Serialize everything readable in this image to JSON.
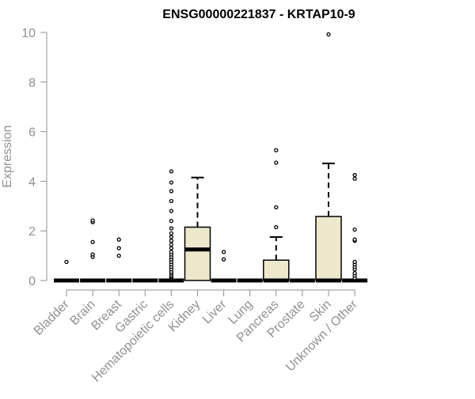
{
  "chart_data": {
    "type": "boxplot",
    "title": "ENSG00000221837 - KRTAP10-9",
    "xlabel": "",
    "ylabel": "Expression",
    "ylim": [
      0,
      10
    ],
    "yticks": [
      0,
      2,
      4,
      6,
      8,
      10
    ],
    "grid": false,
    "legend": "none",
    "colors": {
      "box_fill": "#ede8cc",
      "box_stroke": "#000000",
      "axis": "#909090",
      "label": "#909090"
    },
    "categories": [
      "Bladder",
      "Brain",
      "Breast",
      "Gastric",
      "Hematopoietic cells",
      "Kidney",
      "Liver",
      "Lung",
      "Pancreas",
      "Prostate",
      "Skin",
      "Unknown / Other"
    ],
    "boxes": [
      {
        "category": "Bladder",
        "q1": 0,
        "median": 0,
        "q3": 0,
        "whisker_low": 0,
        "whisker_high": 0,
        "outliers": [
          0.75
        ]
      },
      {
        "category": "Brain",
        "q1": 0,
        "median": 0,
        "q3": 0,
        "whisker_low": 0,
        "whisker_high": 0,
        "outliers": [
          0.95,
          1.05,
          1.55,
          2.35,
          2.42
        ]
      },
      {
        "category": "Breast",
        "q1": 0,
        "median": 0,
        "q3": 0,
        "whisker_low": 0,
        "whisker_high": 0,
        "outliers": [
          1.0,
          1.3,
          1.65
        ]
      },
      {
        "category": "Gastric",
        "q1": 0,
        "median": 0,
        "q3": 0,
        "whisker_low": 0,
        "whisker_high": 0,
        "outliers": []
      },
      {
        "category": "Hematopoietic cells",
        "q1": 0,
        "median": 0,
        "q3": 0,
        "whisker_low": 0,
        "whisker_high": 0,
        "outliers": [
          0.1,
          0.15,
          0.2,
          0.28,
          0.35,
          0.45,
          0.55,
          0.65,
          0.75,
          0.85,
          0.95,
          1.05,
          1.15,
          1.3,
          1.45,
          1.6,
          1.75,
          1.9,
          2.1,
          2.4,
          2.8,
          3.2,
          3.6,
          3.95,
          4.4
        ]
      },
      {
        "category": "Kidney",
        "q1": 0,
        "median": 1.25,
        "q3": 2.15,
        "whisker_low": 0,
        "whisker_high": 4.15,
        "outliers": []
      },
      {
        "category": "Liver",
        "q1": 0,
        "median": 0,
        "q3": 0,
        "whisker_low": 0,
        "whisker_high": 0,
        "outliers": [
          0.85,
          1.15
        ]
      },
      {
        "category": "Lung",
        "q1": 0,
        "median": 0,
        "q3": 0,
        "whisker_low": 0,
        "whisker_high": 0,
        "outliers": []
      },
      {
        "category": "Pancreas",
        "q1": 0,
        "median": 0,
        "q3": 0.82,
        "whisker_low": 0,
        "whisker_high": 1.75,
        "outliers": [
          2.15,
          2.95,
          4.75,
          5.25
        ]
      },
      {
        "category": "Prostate",
        "q1": 0,
        "median": 0,
        "q3": 0,
        "whisker_low": 0,
        "whisker_high": 0,
        "outliers": []
      },
      {
        "category": "Skin",
        "q1": 0,
        "median": 0,
        "q3": 2.58,
        "whisker_low": 0,
        "whisker_high": 4.72,
        "outliers": [
          9.92
        ]
      },
      {
        "category": "Unknown / Other",
        "q1": 0,
        "median": 0,
        "q3": 0,
        "whisker_low": 0,
        "whisker_high": 0,
        "outliers": [
          0.1,
          0.2,
          0.3,
          0.45,
          0.55,
          0.65,
          0.75,
          1.6,
          1.65,
          2.05,
          4.1,
          4.25
        ]
      }
    ]
  }
}
